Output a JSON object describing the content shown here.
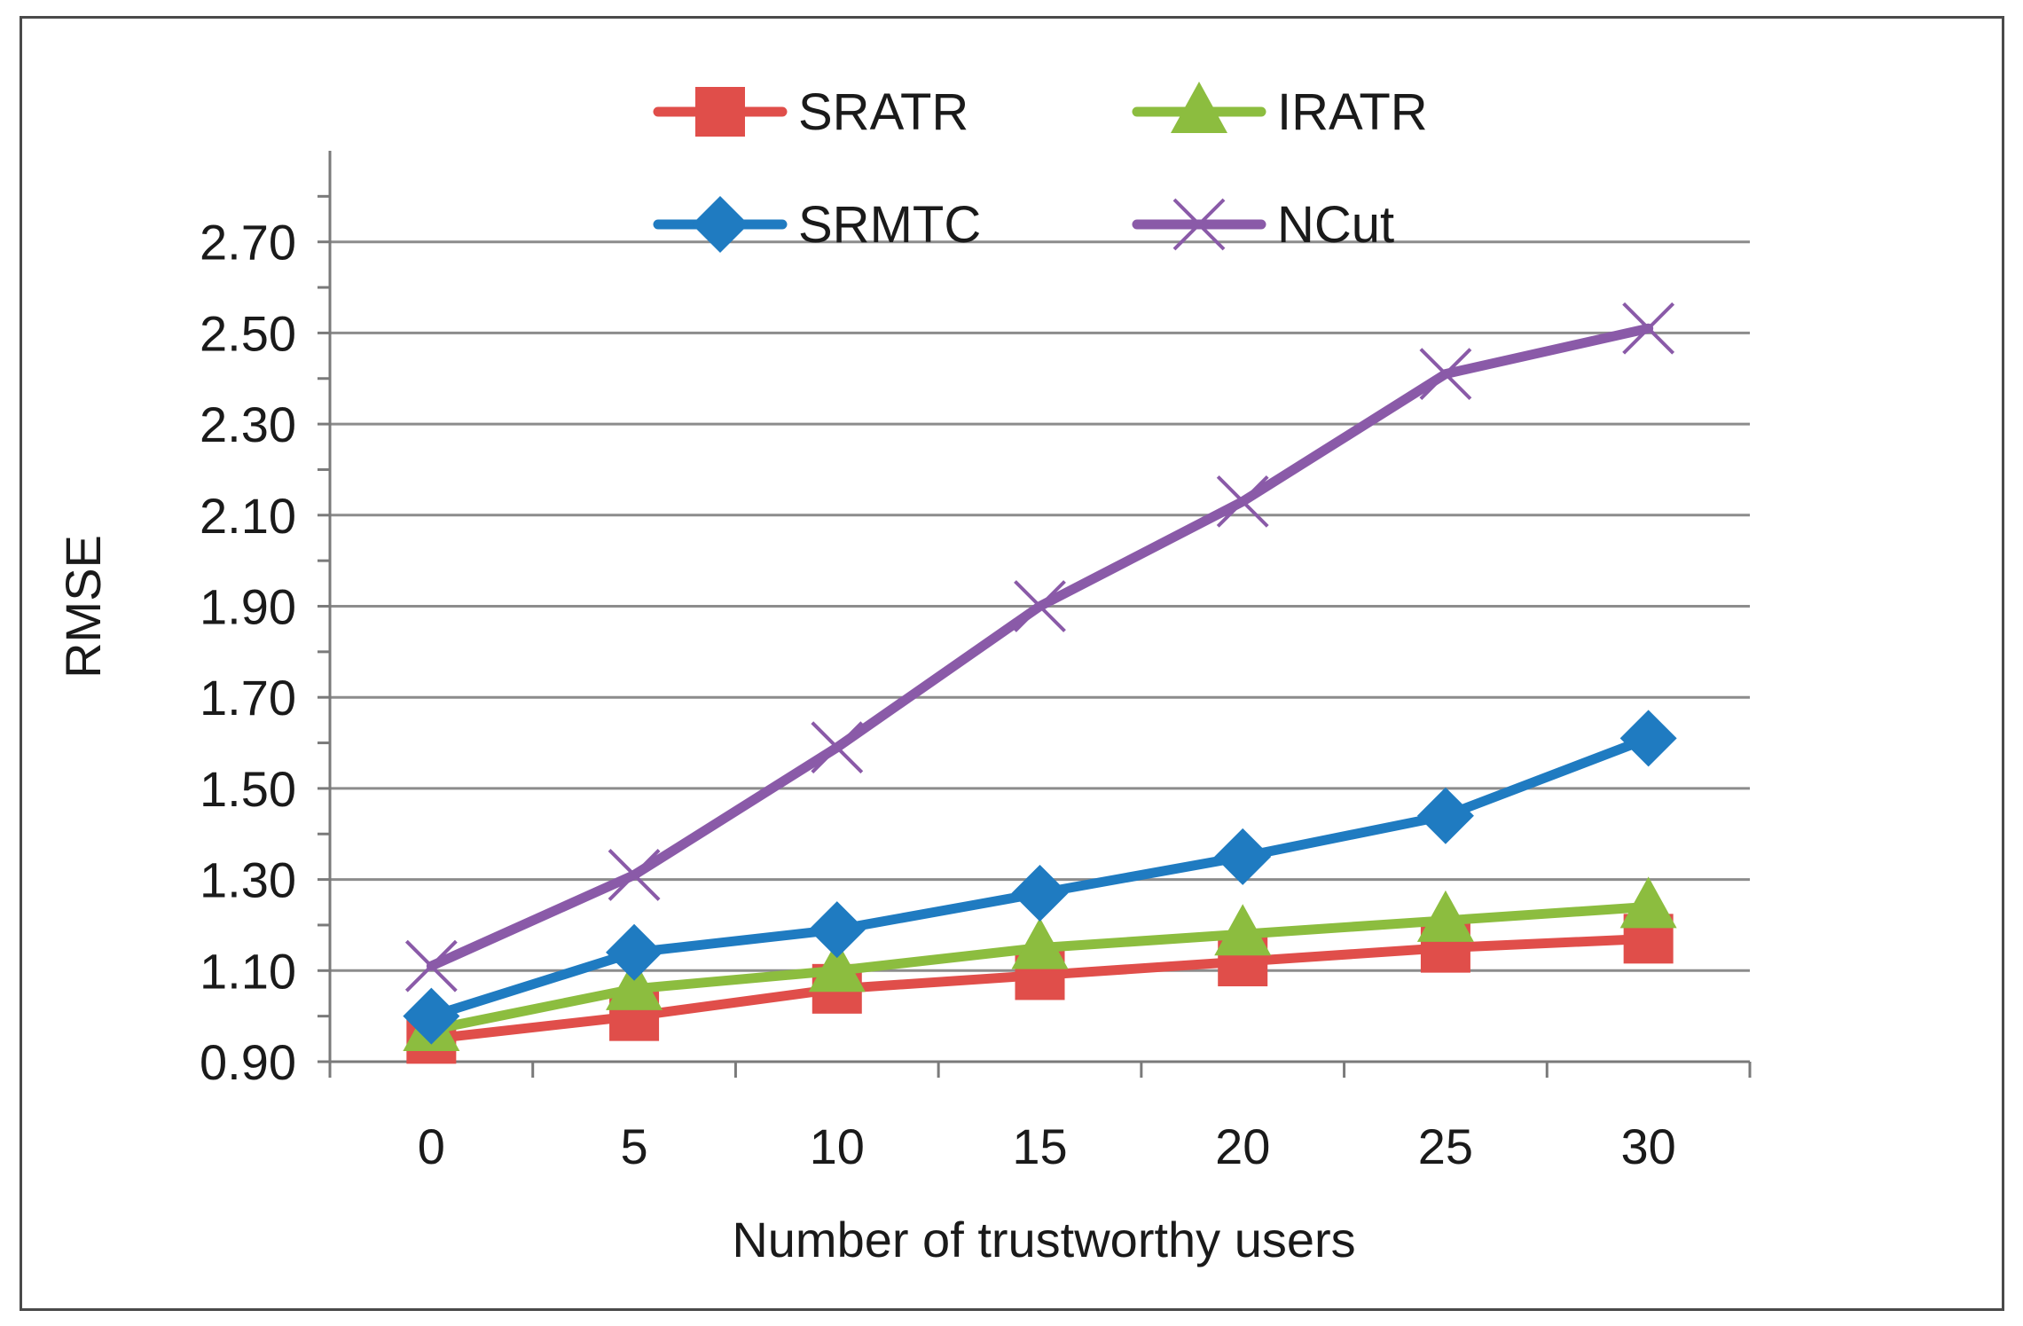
{
  "chart_data": {
    "type": "line",
    "title": "",
    "xlabel": "Number of trustworthy users",
    "ylabel": "RMSE",
    "categories": [
      "0",
      "5",
      "10",
      "15",
      "20",
      "25",
      "30"
    ],
    "yticks": [
      "0.90",
      "1.10",
      "1.30",
      "1.50",
      "1.70",
      "1.90",
      "2.10",
      "2.30",
      "2.50",
      "2.70"
    ],
    "ylim": [
      0.9,
      2.9
    ],
    "grid": true,
    "legend_position": "top",
    "series": [
      {
        "name": "SRATR",
        "color": "#e04e4a",
        "marker": "square",
        "values": [
          0.95,
          1.0,
          1.06,
          1.09,
          1.12,
          1.15,
          1.17
        ]
      },
      {
        "name": "IRATR",
        "color": "#8cbd3f",
        "marker": "triangle",
        "values": [
          0.97,
          1.06,
          1.1,
          1.15,
          1.18,
          1.21,
          1.24
        ]
      },
      {
        "name": "SRMTC",
        "color": "#1f7bc1",
        "marker": "diamond",
        "values": [
          1.0,
          1.14,
          1.19,
          1.27,
          1.35,
          1.44,
          1.61
        ]
      },
      {
        "name": "NCut",
        "color": "#8a5aa8",
        "marker": "x",
        "values": [
          1.11,
          1.31,
          1.59,
          1.9,
          2.13,
          2.41,
          2.51
        ]
      }
    ]
  }
}
